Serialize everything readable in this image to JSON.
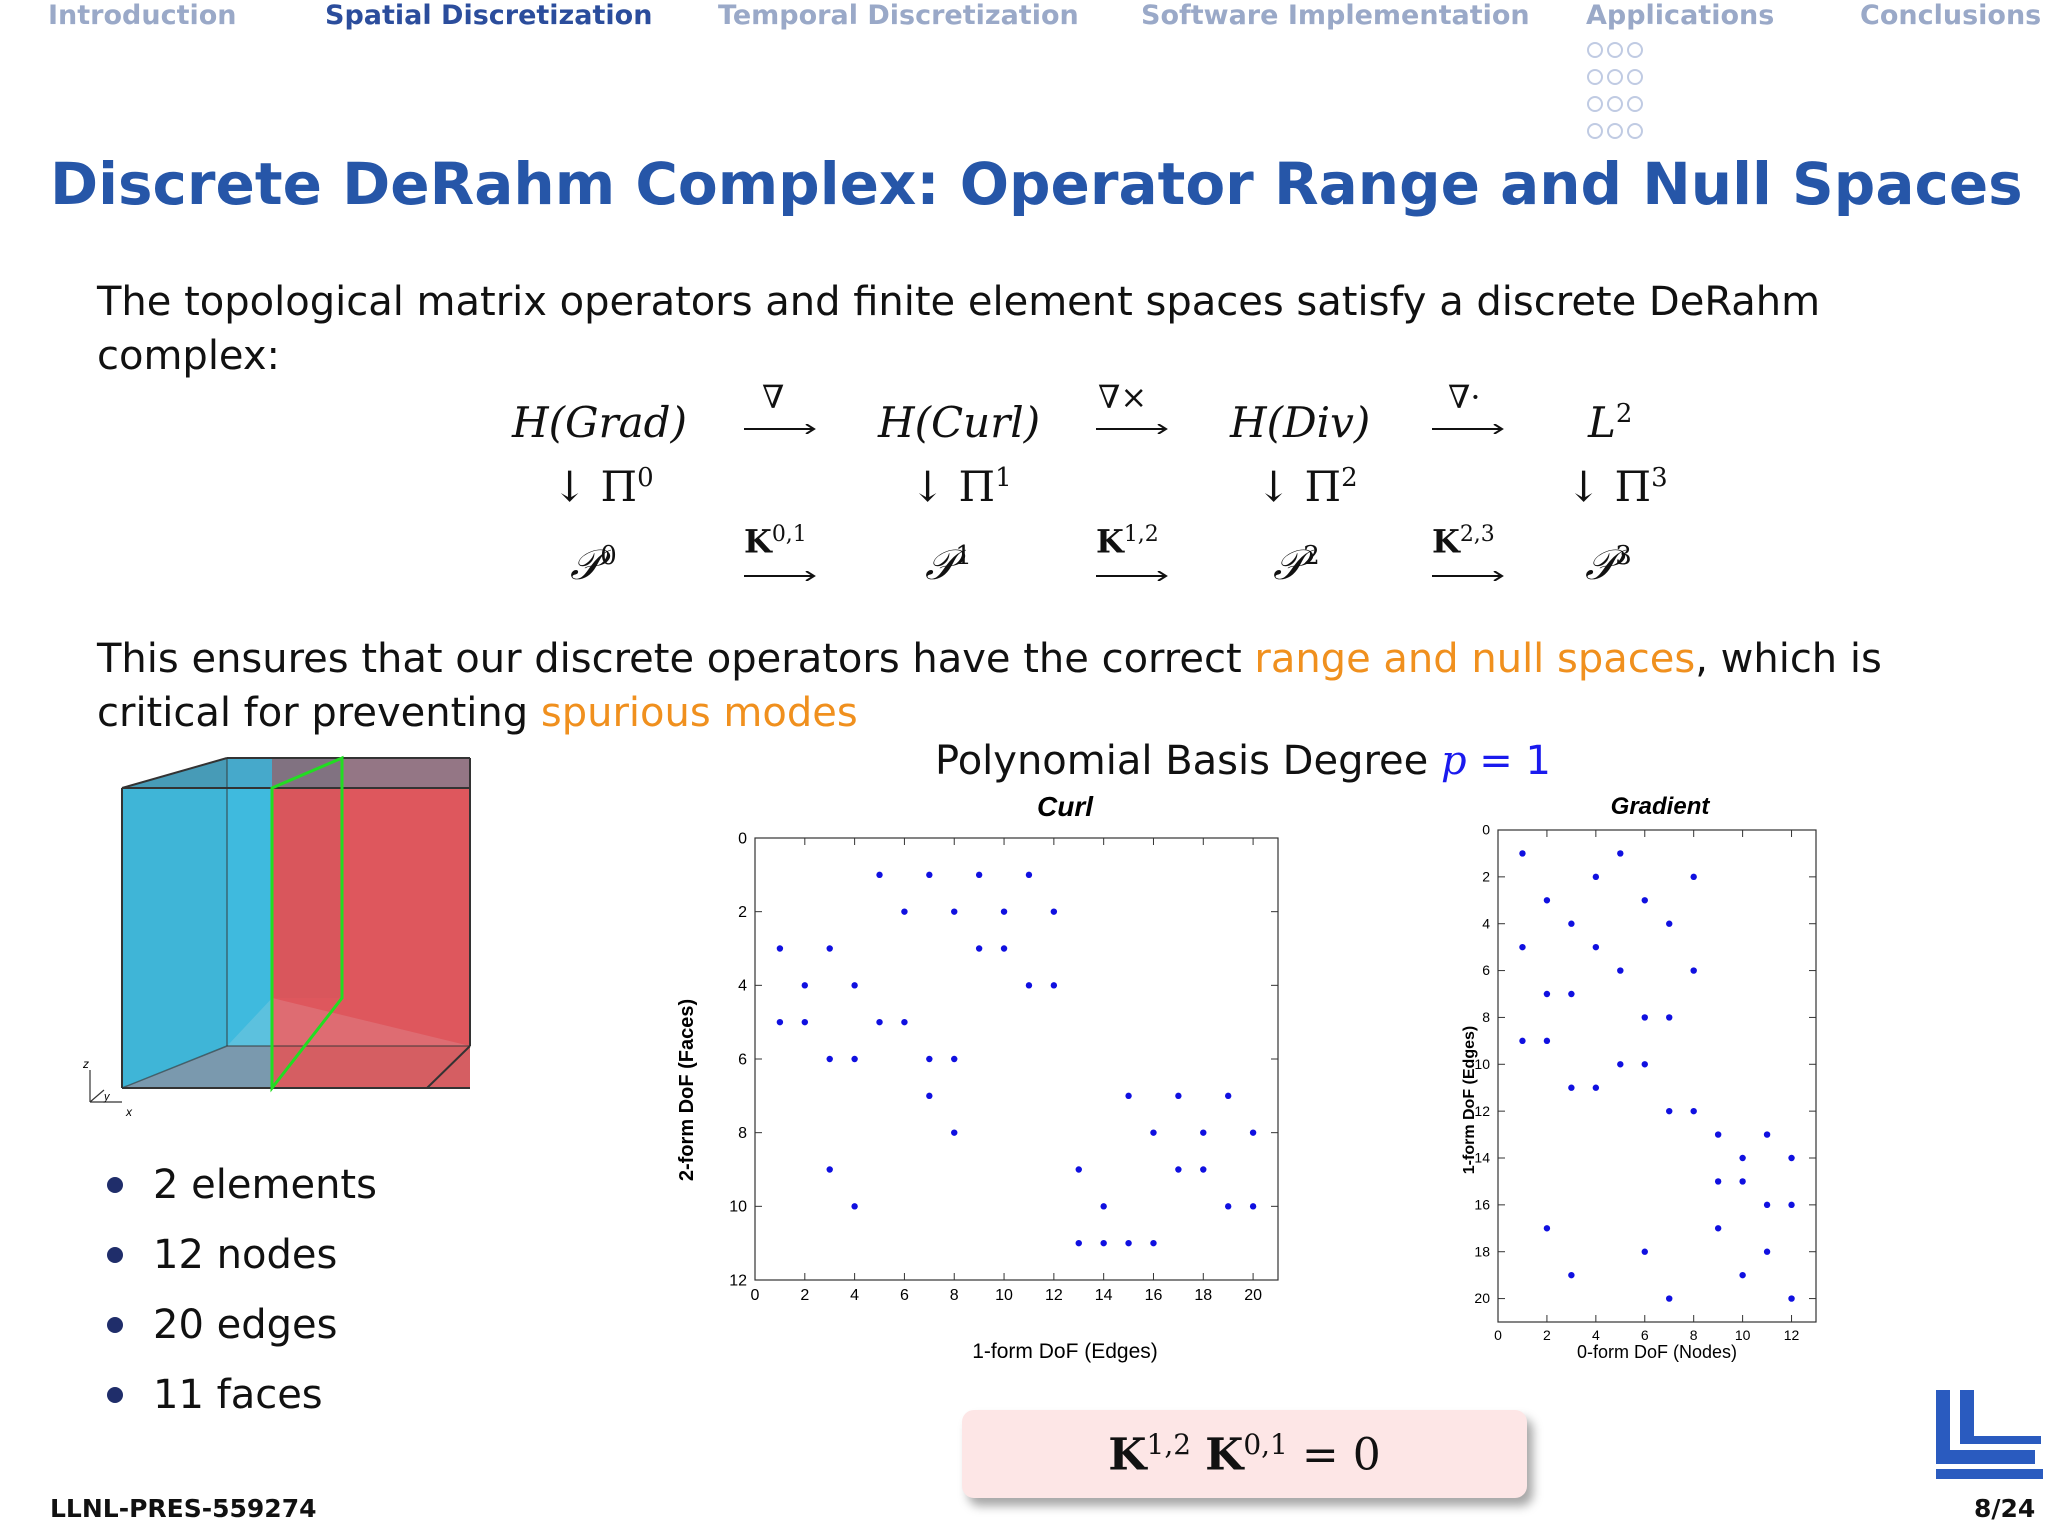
{
  "nav": {
    "items": [
      "Introduction",
      "Spatial Discretization",
      "Temporal Discretization",
      "Software Implementation",
      "Applications",
      "Conclusions"
    ],
    "active": "Spatial Discretization"
  },
  "slide": {
    "title": "Discrete DeRahm Complex: Operator Range and Null Spaces",
    "intro": "The topological matrix operators and finite element spaces satisfy a discrete DeRahm complex:",
    "ensures_before": "This ensures that our discrete operators have the correct ",
    "ensures_hl1": "range and null spaces",
    "ensures_mid": ", which is critical for preventing ",
    "ensures_hl2": "spurious modes",
    "bullets": [
      "2 elements",
      "12 nodes",
      "20 edges",
      "11 faces"
    ],
    "footer_id": "LLNL-PRES-559274",
    "page": "8/24",
    "identity": "K1,2 K0,1 = 0"
  },
  "complex": {
    "top": [
      "H(Grad)",
      "H(Curl)",
      "H(Div)",
      "L2"
    ],
    "top_ops": [
      "∇",
      "∇×",
      "∇·"
    ],
    "projections": [
      "Π0",
      "Π1",
      "Π2",
      "Π3"
    ],
    "bottom": [
      "P0",
      "P1",
      "P2",
      "P3"
    ],
    "bottom_ops": [
      "K0,1",
      "K1,2",
      "K2,3"
    ]
  },
  "plots_title": "Polynomial Basis Degree p = 1",
  "cube": {
    "axis_labels": [
      "z",
      "y",
      "x"
    ],
    "colors": {
      "left": "#3fb6d8",
      "right": "#f05a5a",
      "highlight": "#22dd22"
    }
  },
  "chart_data": [
    {
      "type": "scatter",
      "title": "Curl",
      "xlabel": "1-form DoF (Edges)",
      "ylabel": "2-form DoF (Faces)",
      "xlim": [
        0,
        21
      ],
      "ylim": [
        12,
        0
      ],
      "xticks": [
        0,
        2,
        4,
        6,
        8,
        10,
        12,
        14,
        16,
        18,
        20
      ],
      "yticks": [
        0,
        2,
        4,
        6,
        8,
        10,
        12
      ],
      "color": "#1010e0",
      "points": [
        [
          1,
          3
        ],
        [
          1,
          5
        ],
        [
          2,
          4
        ],
        [
          2,
          5
        ],
        [
          3,
          3
        ],
        [
          3,
          6
        ],
        [
          3,
          9
        ],
        [
          4,
          4
        ],
        [
          4,
          6
        ],
        [
          4,
          10
        ],
        [
          5,
          1
        ],
        [
          5,
          5
        ],
        [
          6,
          2
        ],
        [
          6,
          5
        ],
        [
          7,
          1
        ],
        [
          7,
          6
        ],
        [
          7,
          7
        ],
        [
          8,
          2
        ],
        [
          8,
          6
        ],
        [
          8,
          8
        ],
        [
          9,
          1
        ],
        [
          9,
          3
        ],
        [
          10,
          2
        ],
        [
          10,
          3
        ],
        [
          11,
          1
        ],
        [
          11,
          4
        ],
        [
          12,
          2
        ],
        [
          12,
          4
        ],
        [
          13,
          9
        ],
        [
          13,
          11
        ],
        [
          14,
          10
        ],
        [
          14,
          11
        ],
        [
          15,
          7
        ],
        [
          15,
          11
        ],
        [
          16,
          8
        ],
        [
          16,
          11
        ],
        [
          17,
          7
        ],
        [
          17,
          9
        ],
        [
          18,
          8
        ],
        [
          18,
          9
        ],
        [
          19,
          7
        ],
        [
          19,
          10
        ],
        [
          20,
          8
        ],
        [
          20,
          10
        ]
      ]
    },
    {
      "type": "scatter",
      "title": "Gradient",
      "xlabel": "0-form DoF (Nodes)",
      "ylabel": "1-form DoF (Edges)",
      "xlim": [
        0,
        13
      ],
      "ylim": [
        21,
        0
      ],
      "xticks": [
        0,
        2,
        4,
        6,
        8,
        10,
        12
      ],
      "yticks": [
        0,
        2,
        4,
        6,
        8,
        10,
        12,
        14,
        16,
        18,
        20
      ],
      "color": "#1010e0",
      "points": [
        [
          1,
          1
        ],
        [
          1,
          5
        ],
        [
          1,
          9
        ],
        [
          2,
          3
        ],
        [
          2,
          7
        ],
        [
          2,
          9
        ],
        [
          2,
          17
        ],
        [
          3,
          4
        ],
        [
          3,
          7
        ],
        [
          3,
          11
        ],
        [
          3,
          19
        ],
        [
          4,
          2
        ],
        [
          4,
          5
        ],
        [
          4,
          11
        ],
        [
          5,
          1
        ],
        [
          5,
          6
        ],
        [
          5,
          10
        ],
        [
          6,
          3
        ],
        [
          6,
          8
        ],
        [
          6,
          10
        ],
        [
          6,
          18
        ],
        [
          7,
          4
        ],
        [
          7,
          8
        ],
        [
          7,
          12
        ],
        [
          7,
          20
        ],
        [
          8,
          2
        ],
        [
          8,
          6
        ],
        [
          8,
          12
        ],
        [
          9,
          13
        ],
        [
          9,
          15
        ],
        [
          9,
          17
        ],
        [
          10,
          14
        ],
        [
          10,
          15
        ],
        [
          10,
          19
        ],
        [
          11,
          13
        ],
        [
          11,
          16
        ],
        [
          11,
          18
        ],
        [
          12,
          14
        ],
        [
          12,
          16
        ],
        [
          12,
          20
        ]
      ]
    }
  ]
}
